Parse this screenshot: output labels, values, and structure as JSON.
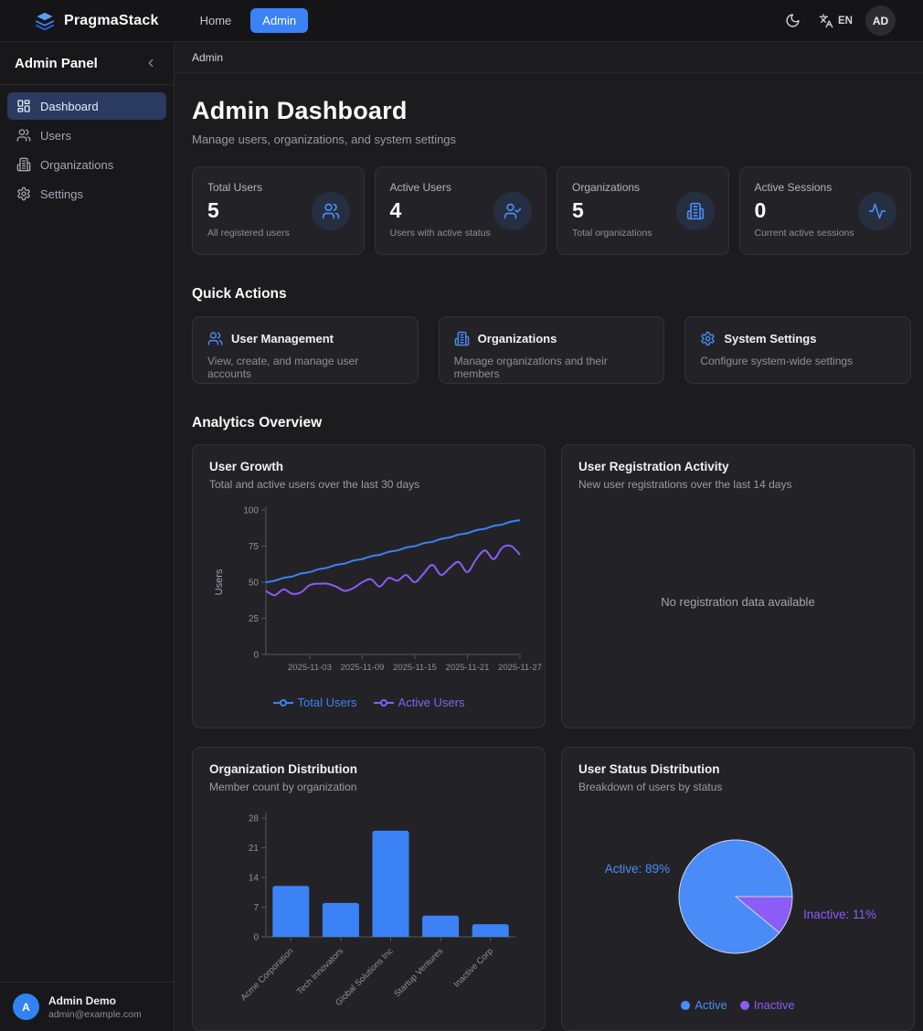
{
  "navbar": {
    "brand": "PragmaStack",
    "links": [
      {
        "label": "Home",
        "active": false
      },
      {
        "label": "Admin",
        "active": true
      }
    ],
    "lang": "EN",
    "avatar_initials": "AD"
  },
  "sidebar": {
    "title": "Admin Panel",
    "items": [
      {
        "label": "Dashboard",
        "icon": "dashboard",
        "active": true
      },
      {
        "label": "Users",
        "icon": "users",
        "active": false
      },
      {
        "label": "Organizations",
        "icon": "building",
        "active": false
      },
      {
        "label": "Settings",
        "icon": "gear",
        "active": false
      }
    ],
    "user": {
      "initial": "A",
      "name": "Admin Demo",
      "email": "admin@example.com"
    }
  },
  "breadcrumb": "Admin",
  "header": {
    "title": "Admin Dashboard",
    "subtitle": "Manage users, organizations, and system settings"
  },
  "stats": [
    {
      "label": "Total Users",
      "value": "5",
      "desc": "All registered users",
      "icon": "users"
    },
    {
      "label": "Active Users",
      "value": "4",
      "desc": "Users with active status",
      "icon": "user-check"
    },
    {
      "label": "Organizations",
      "value": "5",
      "desc": "Total organizations",
      "icon": "building"
    },
    {
      "label": "Active Sessions",
      "value": "0",
      "desc": "Current active sessions",
      "icon": "activity"
    }
  ],
  "quick_actions": {
    "heading": "Quick Actions",
    "items": [
      {
        "title": "User Management",
        "desc": "View, create, and manage user accounts",
        "icon": "users"
      },
      {
        "title": "Organizations",
        "desc": "Manage organizations and their members",
        "icon": "building"
      },
      {
        "title": "System Settings",
        "desc": "Configure system-wide settings",
        "icon": "gear"
      }
    ]
  },
  "analytics_heading": "Analytics Overview",
  "colors": {
    "blue": "#3b82f6",
    "purple": "#8b5cf6",
    "pie_blue": "#4a8cf7",
    "axis": "#55555e"
  },
  "chart_data": [
    {
      "type": "line",
      "title": "User Growth",
      "subtitle": "Total and active users over the last 30 days",
      "ylabel": "Users",
      "ylim": [
        0,
        100
      ],
      "yticks": [
        0,
        25,
        50,
        75,
        100
      ],
      "xticks": [
        "2025-11-03",
        "2025-11-09",
        "2025-11-15",
        "2025-11-21",
        "2025-11-27"
      ],
      "xtick_day_index": [
        5,
        11,
        17,
        23,
        29
      ],
      "series": [
        {
          "name": "Total Users",
          "color": "#3b82f6",
          "values": [
            50,
            51,
            53,
            54,
            56,
            57,
            59,
            60,
            62,
            63,
            65,
            66,
            68,
            69,
            71,
            72,
            74,
            75,
            77,
            78,
            80,
            81,
            83,
            84,
            86,
            87,
            89,
            90,
            92,
            93
          ]
        },
        {
          "name": "Active Users",
          "color": "#8b5cf6",
          "values": [
            44,
            41,
            45,
            42,
            43,
            48,
            49,
            49,
            47,
            44,
            46,
            50,
            52,
            47,
            53,
            51,
            55,
            50,
            56,
            62,
            55,
            60,
            64,
            57,
            66,
            72,
            66,
            74,
            75,
            69
          ]
        }
      ],
      "legend": [
        "Total Users",
        "Active Users"
      ]
    },
    {
      "type": "empty",
      "title": "User Registration Activity",
      "subtitle": "New user registrations over the last 14 days",
      "empty_text": "No registration data available"
    },
    {
      "type": "bar",
      "title": "Organization Distribution",
      "subtitle": "Member count by organization",
      "categories": [
        "Acme Corporation",
        "Tech Innovators",
        "Global Solutions Inc",
        "Startup Ventures",
        "Inactive Corp"
      ],
      "values": [
        12,
        8,
        25,
        5,
        3
      ],
      "ylim": [
        0,
        28
      ],
      "yticks": [
        0,
        7,
        14,
        21,
        28
      ],
      "bar_color": "#3b82f6"
    },
    {
      "type": "pie",
      "title": "User Status Distribution",
      "subtitle": "Breakdown of users by status",
      "slices": [
        {
          "label": "Active",
          "pct": 89,
          "color": "#4a8cf7",
          "callout": "Active: 89%",
          "side": "left"
        },
        {
          "label": "Inactive",
          "pct": 11,
          "color": "#8b5cf6",
          "callout": "Inactive: 11%",
          "side": "right"
        }
      ],
      "legend": [
        "Active",
        "Inactive"
      ]
    }
  ]
}
